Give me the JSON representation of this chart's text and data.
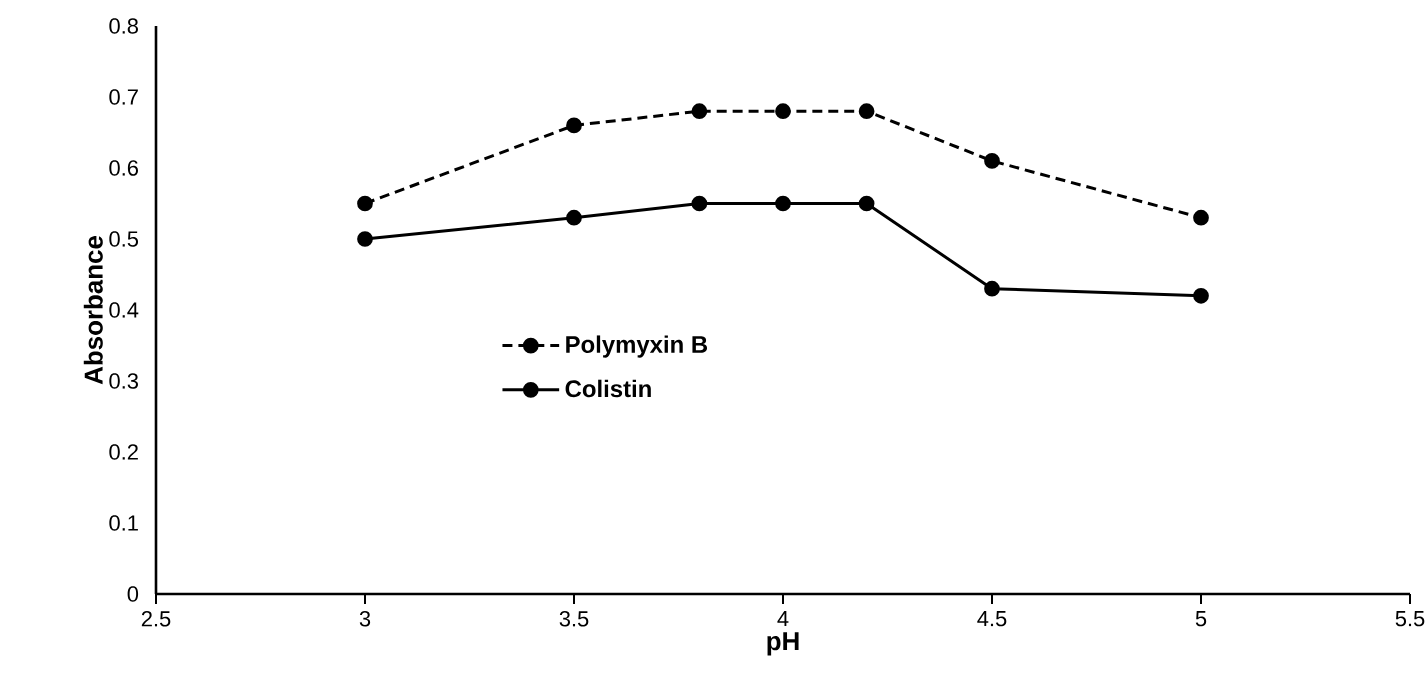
{
  "chart_data": {
    "type": "line",
    "xlabel": "pH",
    "ylabel": "Absorbance",
    "x": [
      3,
      3.5,
      3.8,
      4,
      4.2,
      4.5,
      5
    ],
    "series": [
      {
        "name": "Polymyxin B",
        "color": "#000000",
        "line_style": "dashed",
        "values": [
          0.55,
          0.66,
          0.68,
          0.68,
          0.68,
          0.61,
          0.53
        ]
      },
      {
        "name": "Colistin",
        "color": "#000000",
        "line_style": "solid",
        "values": [
          0.5,
          0.53,
          0.55,
          0.55,
          0.55,
          0.43,
          0.42
        ]
      }
    ],
    "xlim": [
      2.5,
      5.5
    ],
    "xticks": [
      2.5,
      3,
      3.5,
      4,
      4.5,
      5,
      5.5
    ],
    "ylim": [
      0,
      0.8
    ],
    "yticks": [
      0,
      0.1,
      0.2,
      0.3,
      0.4,
      0.5,
      0.6,
      0.7,
      0.8
    ],
    "marker": "circle",
    "legend": "left",
    "grid": false
  }
}
